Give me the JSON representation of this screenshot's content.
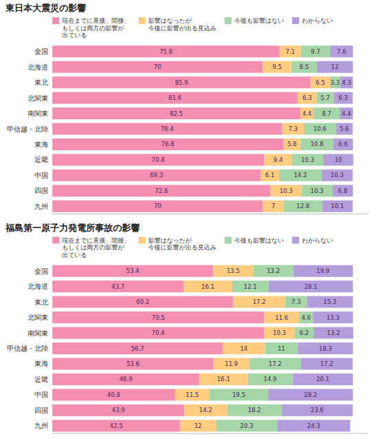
{
  "chart_data": [
    {
      "type": "bar",
      "orientation": "horizontal",
      "stacked": true,
      "data_labels": true,
      "title": "東日本大震災の影響",
      "categories": [
        "全国",
        "北海道",
        "東北",
        "北関東",
        "南関東",
        "甲信越・北陸",
        "東海",
        "近畿",
        "中国",
        "四国",
        "九州"
      ],
      "series": [
        {
          "name": "現在までに直接、間接、\nもしくは両方の影響が\n出ている",
          "color": "#F48FB1",
          "values": [
            75.6,
            70.0,
            85.9,
            81.6,
            82.5,
            76.4,
            76.8,
            70.4,
            69.3,
            72.6,
            70.0
          ]
        },
        {
          "name": "影響はなったが\n今後に影響が出る見込み",
          "color": "#FFCC80",
          "values": [
            7.1,
            9.5,
            6.5,
            6.3,
            4.4,
            7.3,
            5.8,
            9.4,
            6.1,
            10.3,
            7.0
          ]
        },
        {
          "name": "今後も影響はない",
          "color": "#A5D6A7",
          "values": [
            9.7,
            8.5,
            3.3,
            5.7,
            8.7,
            10.6,
            10.8,
            10.3,
            14.2,
            10.3,
            12.8
          ]
        },
        {
          "name": "わからない",
          "color": "#B39DDB",
          "values": [
            7.6,
            12.0,
            4.3,
            6.3,
            4.4,
            5.6,
            6.6,
            10.0,
            10.3,
            6.8,
            10.1
          ]
        }
      ],
      "xlim": [
        0,
        105
      ],
      "tick_labels": "y",
      "legend": "top"
    },
    {
      "type": "bar",
      "orientation": "horizontal",
      "stacked": true,
      "data_labels": true,
      "title": "福島第一原子力発電所事故の影響",
      "categories": [
        "全国",
        "北海道",
        "東北",
        "北関東",
        "南関東",
        "甲信越・北陸",
        "東海",
        "近畿",
        "中国",
        "四国",
        "九州"
      ],
      "series": [
        {
          "name": "現在までに直接、間接、\nもしくは両方の影響が\n出ている",
          "color": "#F48FB1",
          "values": [
            53.4,
            43.7,
            60.2,
            70.5,
            70.4,
            56.7,
            53.6,
            48.9,
            40.8,
            43.9,
            42.5
          ]
        },
        {
          "name": "影響はなったが\n今後に影響が出る見込み",
          "color": "#FFCC80",
          "values": [
            13.5,
            16.1,
            17.2,
            11.6,
            10.3,
            14.0,
            11.9,
            16.1,
            11.5,
            14.2,
            12.0
          ]
        },
        {
          "name": "今後も影響はない",
          "color": "#A5D6A7",
          "values": [
            13.2,
            12.1,
            7.3,
            4.6,
            6.2,
            11.0,
            17.2,
            14.9,
            19.5,
            18.2,
            20.3
          ]
        },
        {
          "name": "わからない",
          "color": "#B39DDB",
          "values": [
            19.9,
            28.1,
            15.3,
            13.3,
            13.2,
            18.3,
            17.2,
            20.1,
            28.2,
            23.6,
            24.3
          ]
        }
      ],
      "xlim": [
        0,
        105
      ],
      "tick_labels": "y",
      "legend": "top"
    }
  ]
}
